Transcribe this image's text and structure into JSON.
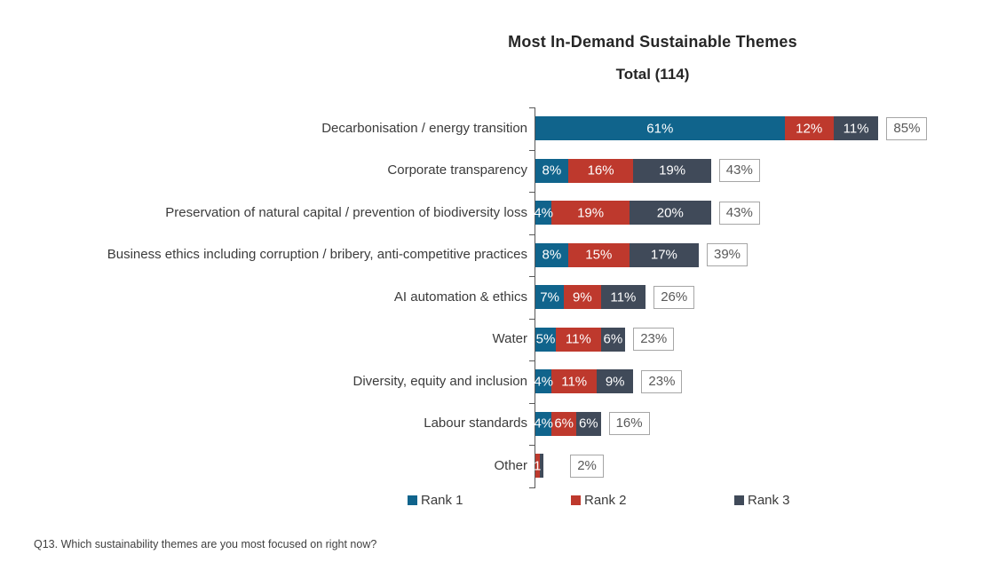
{
  "chart_data": {
    "type": "bar",
    "orientation": "horizontal-stacked",
    "title": "Most In-Demand Sustainable Themes",
    "subtitle": "Total (114)",
    "categories": [
      "Decarbonisation / energy transition",
      "Corporate transparency",
      "Preservation of natural capital / prevention of biodiversity loss",
      "Business ethics including corruption / bribery, anti-competitive practices",
      "AI automation & ethics",
      "Water",
      "Diversity, equity and inclusion",
      "Labour standards",
      "Other"
    ],
    "series": [
      {
        "name": "Rank 1",
        "color": "#10648C",
        "values": [
          61,
          8,
          4,
          8,
          7,
          5,
          4,
          4,
          0
        ]
      },
      {
        "name": "Rank 2",
        "color": "#BE392D",
        "values": [
          12,
          16,
          19,
          15,
          9,
          11,
          11,
          6,
          1
        ]
      },
      {
        "name": "Rank 3",
        "color": "#404A59",
        "values": [
          11,
          19,
          20,
          17,
          11,
          6,
          9,
          6,
          1
        ]
      }
    ],
    "segment_labels": [
      [
        "61%",
        "12%",
        "11%"
      ],
      [
        "8%",
        "16%",
        "19%"
      ],
      [
        "4%",
        "19%",
        "20%"
      ],
      [
        "8%",
        "15%",
        "17%"
      ],
      [
        "7%",
        "9%",
        "11%"
      ],
      [
        "5%",
        "11%",
        "6%"
      ],
      [
        "4%",
        "11%",
        "9%"
      ],
      [
        "4%",
        "6%",
        "6%"
      ],
      [
        "",
        "1",
        ""
      ]
    ],
    "totals": [
      "85%",
      "43%",
      "43%",
      "39%",
      "26%",
      "23%",
      "23%",
      "16%",
      "2%"
    ],
    "legend": [
      "Rank 1",
      "Rank 2",
      "Rank 3"
    ],
    "xlim": [
      0,
      100
    ],
    "grid": false,
    "legend_position": "bottom",
    "colors": {
      "axis": "#595959",
      "total_box_border": "#A6A6A6",
      "total_text": "#595959",
      "bar_label_text": "#FFFFFF",
      "category_text": "#3B3B3B",
      "title_text": "#262626"
    }
  },
  "footer": {
    "text": "Q13. Which sustainability themes are you most focused on right now?"
  }
}
